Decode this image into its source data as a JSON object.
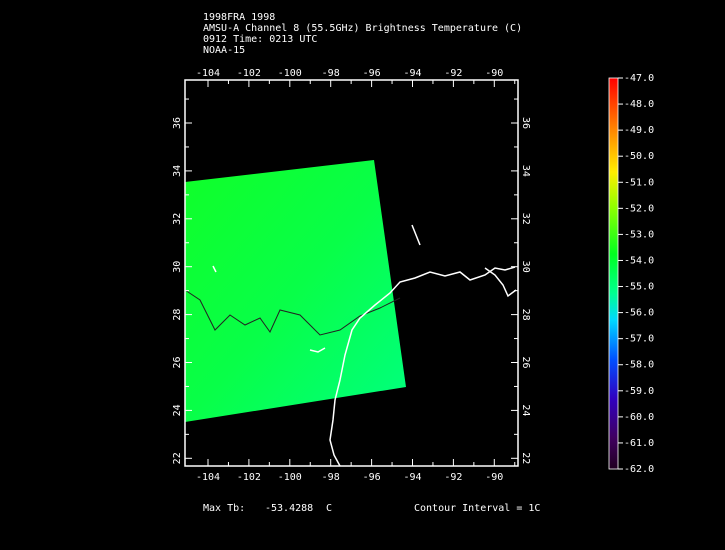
{
  "header": {
    "lines": [
      "1998FRA 1998",
      "AMSU-A Channel 8 (55.5GHz) Brightness Temperature (C)",
      "0912 Time: 0213 UTC",
      "NOAA-15"
    ]
  },
  "map": {
    "lon_labels": [
      "-104",
      "-102",
      "-100",
      "-98",
      "-96",
      "-94",
      "-92",
      "-90"
    ],
    "lat_labels": [
      "36",
      "34",
      "32",
      "30",
      "28",
      "26",
      "24",
      "22"
    ]
  },
  "colorbar": {
    "labels": [
      "-47.0",
      "-48.0",
      "-49.0",
      "-50.0",
      "-51.0",
      "-52.0",
      "-53.0",
      "-54.0",
      "-55.0",
      "-56.0",
      "-57.0",
      "-58.0",
      "-59.0",
      "-60.0",
      "-61.0",
      "-62.0"
    ]
  },
  "footer": {
    "max_label": "Max Tb:",
    "max_value": "-53.4288",
    "unit": "C",
    "contour": "Contour Interval = 1C"
  }
}
